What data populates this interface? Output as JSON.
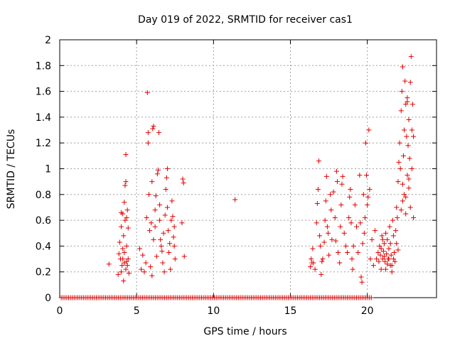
{
  "chart_data": {
    "type": "scatter",
    "title": "Day 019 of 2022, SRMTID for receiver cas1",
    "xlabel": "GPS time / hours",
    "ylabel": "SRMTID / TECUs",
    "xlim": [
      0,
      24.5
    ],
    "ylim": [
      0,
      2
    ],
    "xticks": [
      0,
      5,
      10,
      15,
      20
    ],
    "yticks": [
      0,
      0.2,
      0.4,
      0.6,
      0.8,
      1,
      1.2,
      1.4,
      1.6,
      1.8,
      2
    ],
    "xtick_labels": [
      "0",
      "5",
      "10",
      "15",
      "20"
    ],
    "ytick_labels": [
      "0",
      "0.2",
      "0.4",
      "0.6",
      "0.8",
      "1",
      "1.2",
      "1.4",
      "1.6",
      "1.8",
      "2"
    ],
    "grid": true,
    "marker": "+",
    "color": "#e00000",
    "series": [
      {
        "name": "SRMTID",
        "points": [
          [
            3.2,
            0.26
          ],
          [
            3.8,
            0.18
          ],
          [
            3.85,
            0.34
          ],
          [
            3.9,
            0.43
          ],
          [
            3.95,
            0.3
          ],
          [
            4.0,
            0.2
          ],
          [
            4.0,
            0.55
          ],
          [
            4.05,
            0.25
          ],
          [
            4.1,
            0.65
          ],
          [
            4.1,
            0.38
          ],
          [
            4.15,
            0.13
          ],
          [
            4.15,
            0.48
          ],
          [
            4.2,
            0.27
          ],
          [
            4.2,
            0.74
          ],
          [
            4.25,
            0.87
          ],
          [
            4.25,
            0.6
          ],
          [
            4.3,
            0.9
          ],
          [
            4.3,
            0.22
          ],
          [
            4.3,
            1.11
          ],
          [
            4.35,
            0.4
          ],
          [
            4.35,
            0.62
          ],
          [
            4.4,
            0.25
          ],
          [
            4.4,
            0.68
          ],
          [
            4.45,
            0.3
          ],
          [
            4.45,
            0.54
          ],
          [
            4.5,
            0.19
          ],
          [
            4.0,
            0.66
          ],
          [
            4.2,
            0.35
          ],
          [
            4.35,
            0.28
          ],
          [
            4.1,
            0.3
          ],
          [
            5.2,
            0.38
          ],
          [
            5.3,
            0.22
          ],
          [
            5.4,
            0.33
          ],
          [
            5.5,
            0.2
          ],
          [
            5.6,
            0.27
          ],
          [
            5.65,
            0.62
          ],
          [
            5.7,
            1.59
          ],
          [
            5.75,
            1.2
          ],
          [
            5.75,
            1.28
          ],
          [
            5.8,
            0.8
          ],
          [
            5.85,
            0.52
          ],
          [
            5.9,
            0.24
          ],
          [
            5.95,
            0.58
          ],
          [
            6.0,
            0.9
          ],
          [
            6.0,
            0.17
          ],
          [
            6.05,
            1.31
          ],
          [
            6.1,
            1.33
          ],
          [
            6.1,
            0.45
          ],
          [
            6.2,
            0.68
          ],
          [
            6.2,
            0.55
          ],
          [
            6.25,
            0.79
          ],
          [
            6.3,
            0.32
          ],
          [
            6.35,
            0.96
          ],
          [
            6.4,
            0.99
          ],
          [
            6.45,
            1.28
          ],
          [
            6.5,
            0.72
          ],
          [
            6.5,
            0.6
          ],
          [
            6.55,
            0.45
          ],
          [
            6.6,
            0.4
          ],
          [
            6.65,
            0.36
          ],
          [
            6.7,
            0.27
          ],
          [
            6.75,
            0.5
          ],
          [
            6.8,
            0.2
          ],
          [
            6.85,
            0.64
          ],
          [
            6.9,
            0.84
          ],
          [
            6.95,
            0.93
          ],
          [
            7.0,
            1.0
          ],
          [
            7.0,
            0.7
          ],
          [
            7.05,
            0.52
          ],
          [
            7.1,
            0.35
          ],
          [
            7.15,
            0.42
          ],
          [
            7.2,
            0.22
          ],
          [
            7.25,
            0.6
          ],
          [
            7.3,
            0.75
          ],
          [
            7.35,
            0.63
          ],
          [
            7.4,
            0.47
          ],
          [
            7.45,
            0.4
          ],
          [
            7.5,
            0.3
          ],
          [
            7.45,
            0.55
          ],
          [
            7.95,
            0.58
          ],
          [
            8.0,
            0.92
          ],
          [
            8.05,
            0.89
          ],
          [
            8.1,
            0.32
          ],
          [
            11.4,
            0.76
          ],
          [
            16.3,
            0.24
          ],
          [
            16.35,
            0.3
          ],
          [
            16.4,
            0.27
          ],
          [
            16.45,
            0.38
          ],
          [
            16.5,
            0.27
          ],
          [
            16.6,
            0.22
          ],
          [
            16.7,
            0.58
          ],
          [
            16.75,
            0.73
          ],
          [
            16.8,
            0.84
          ],
          [
            16.85,
            1.06
          ],
          [
            16.9,
            0.48
          ],
          [
            16.95,
            0.4
          ],
          [
            17.0,
            0.18
          ],
          [
            17.05,
            0.28
          ],
          [
            17.1,
            0.3
          ],
          [
            17.2,
            0.43
          ],
          [
            17.25,
            0.6
          ],
          [
            17.3,
            0.75
          ],
          [
            17.35,
            0.94
          ],
          [
            17.4,
            0.55
          ],
          [
            17.45,
            0.5
          ],
          [
            17.5,
            0.33
          ],
          [
            17.6,
            0.8
          ],
          [
            17.65,
            0.68
          ],
          [
            17.7,
            0.45
          ],
          [
            17.8,
            0.82
          ],
          [
            17.9,
            0.62
          ],
          [
            17.95,
            0.44
          ],
          [
            18.0,
            0.98
          ],
          [
            18.05,
            0.9
          ],
          [
            18.1,
            0.35
          ],
          [
            18.2,
            0.27
          ],
          [
            18.25,
            0.55
          ],
          [
            18.3,
            0.72
          ],
          [
            18.35,
            0.88
          ],
          [
            18.4,
            0.94
          ],
          [
            18.5,
            0.5
          ],
          [
            18.6,
            0.4
          ],
          [
            18.7,
            0.35
          ],
          [
            18.8,
            0.62
          ],
          [
            18.85,
            0.78
          ],
          [
            18.9,
            0.84
          ],
          [
            18.95,
            0.58
          ],
          [
            19.0,
            0.3
          ],
          [
            19.05,
            0.22
          ],
          [
            19.1,
            0.4
          ],
          [
            19.2,
            0.72
          ],
          [
            19.3,
            0.55
          ],
          [
            19.4,
            0.35
          ],
          [
            19.5,
            0.95
          ],
          [
            19.55,
            0.58
          ],
          [
            19.6,
            0.16
          ],
          [
            19.65,
            0.12
          ],
          [
            19.7,
            0.42
          ],
          [
            19.75,
            0.8
          ],
          [
            19.8,
            0.5
          ],
          [
            19.85,
            0.62
          ],
          [
            19.9,
            1.2
          ],
          [
            19.95,
            0.95
          ],
          [
            20.0,
            0.72
          ],
          [
            20.05,
            0.78
          ],
          [
            20.1,
            1.3
          ],
          [
            20.15,
            0.84
          ],
          [
            20.2,
            0.3
          ],
          [
            20.3,
            0.45
          ],
          [
            20.4,
            0.25
          ],
          [
            20.5,
            0.52
          ],
          [
            20.6,
            0.3
          ],
          [
            20.7,
            0.35
          ],
          [
            20.75,
            0.28
          ],
          [
            20.8,
            0.4
          ],
          [
            20.85,
            0.33
          ],
          [
            20.9,
            0.22
          ],
          [
            20.95,
            0.48
          ],
          [
            21.0,
            0.3
          ],
          [
            21.05,
            0.36
          ],
          [
            21.1,
            0.42
          ],
          [
            21.15,
            0.28
          ],
          [
            21.2,
            0.5
          ],
          [
            21.25,
            0.34
          ],
          [
            21.3,
            0.45
          ],
          [
            21.35,
            0.3
          ],
          [
            21.4,
            0.38
          ],
          [
            21.45,
            0.55
          ],
          [
            21.5,
            0.42
          ],
          [
            21.55,
            0.33
          ],
          [
            21.6,
            0.25
          ],
          [
            21.65,
            0.6
          ],
          [
            21.7,
            0.48
          ],
          [
            21.75,
            0.35
          ],
          [
            21.8,
            0.28
          ],
          [
            21.85,
            0.52
          ],
          [
            21.9,
            0.42
          ],
          [
            21.95,
            0.62
          ],
          [
            22.0,
            0.37
          ],
          [
            21.6,
            0.2
          ],
          [
            21.4,
            0.3
          ],
          [
            21.2,
            0.22
          ],
          [
            21.0,
            0.45
          ],
          [
            20.9,
            0.38
          ],
          [
            21.3,
            0.26
          ],
          [
            21.7,
            0.3
          ],
          [
            21.5,
            0.25
          ],
          [
            21.1,
            0.32
          ],
          [
            21.9,
            0.7
          ],
          [
            22.0,
            0.9
          ],
          [
            22.05,
            1.05
          ],
          [
            22.1,
            1.2
          ],
          [
            22.15,
            1.0
          ],
          [
            22.2,
            1.45
          ],
          [
            22.25,
            1.6
          ],
          [
            22.3,
            1.79
          ],
          [
            22.3,
            0.75
          ],
          [
            22.35,
            1.1
          ],
          [
            22.4,
            0.8
          ],
          [
            22.4,
            1.3
          ],
          [
            22.45,
            1.68
          ],
          [
            22.5,
            1.5
          ],
          [
            22.5,
            0.65
          ],
          [
            22.55,
            1.25
          ],
          [
            22.6,
            0.95
          ],
          [
            22.6,
            1.52
          ],
          [
            22.65,
            1.18
          ],
          [
            22.7,
            0.85
          ],
          [
            22.7,
            1.38
          ],
          [
            22.75,
            1.08
          ],
          [
            22.8,
            1.67
          ],
          [
            22.8,
            0.7
          ],
          [
            22.85,
            1.87
          ],
          [
            22.9,
            1.3
          ],
          [
            22.9,
            1.0
          ],
          [
            22.95,
            1.5
          ],
          [
            23.0,
            1.25
          ],
          [
            23.0,
            0.62
          ],
          [
            22.3,
            0.88
          ],
          [
            22.5,
            0.78
          ],
          [
            22.7,
            0.92
          ],
          [
            22.2,
            0.68
          ],
          [
            22.6,
            1.55
          ]
        ],
        "zero_band": {
          "y": 0,
          "x_start": 0.1,
          "x_end": 20.3,
          "note": "dense row of points along y = 0"
        }
      }
    ]
  }
}
